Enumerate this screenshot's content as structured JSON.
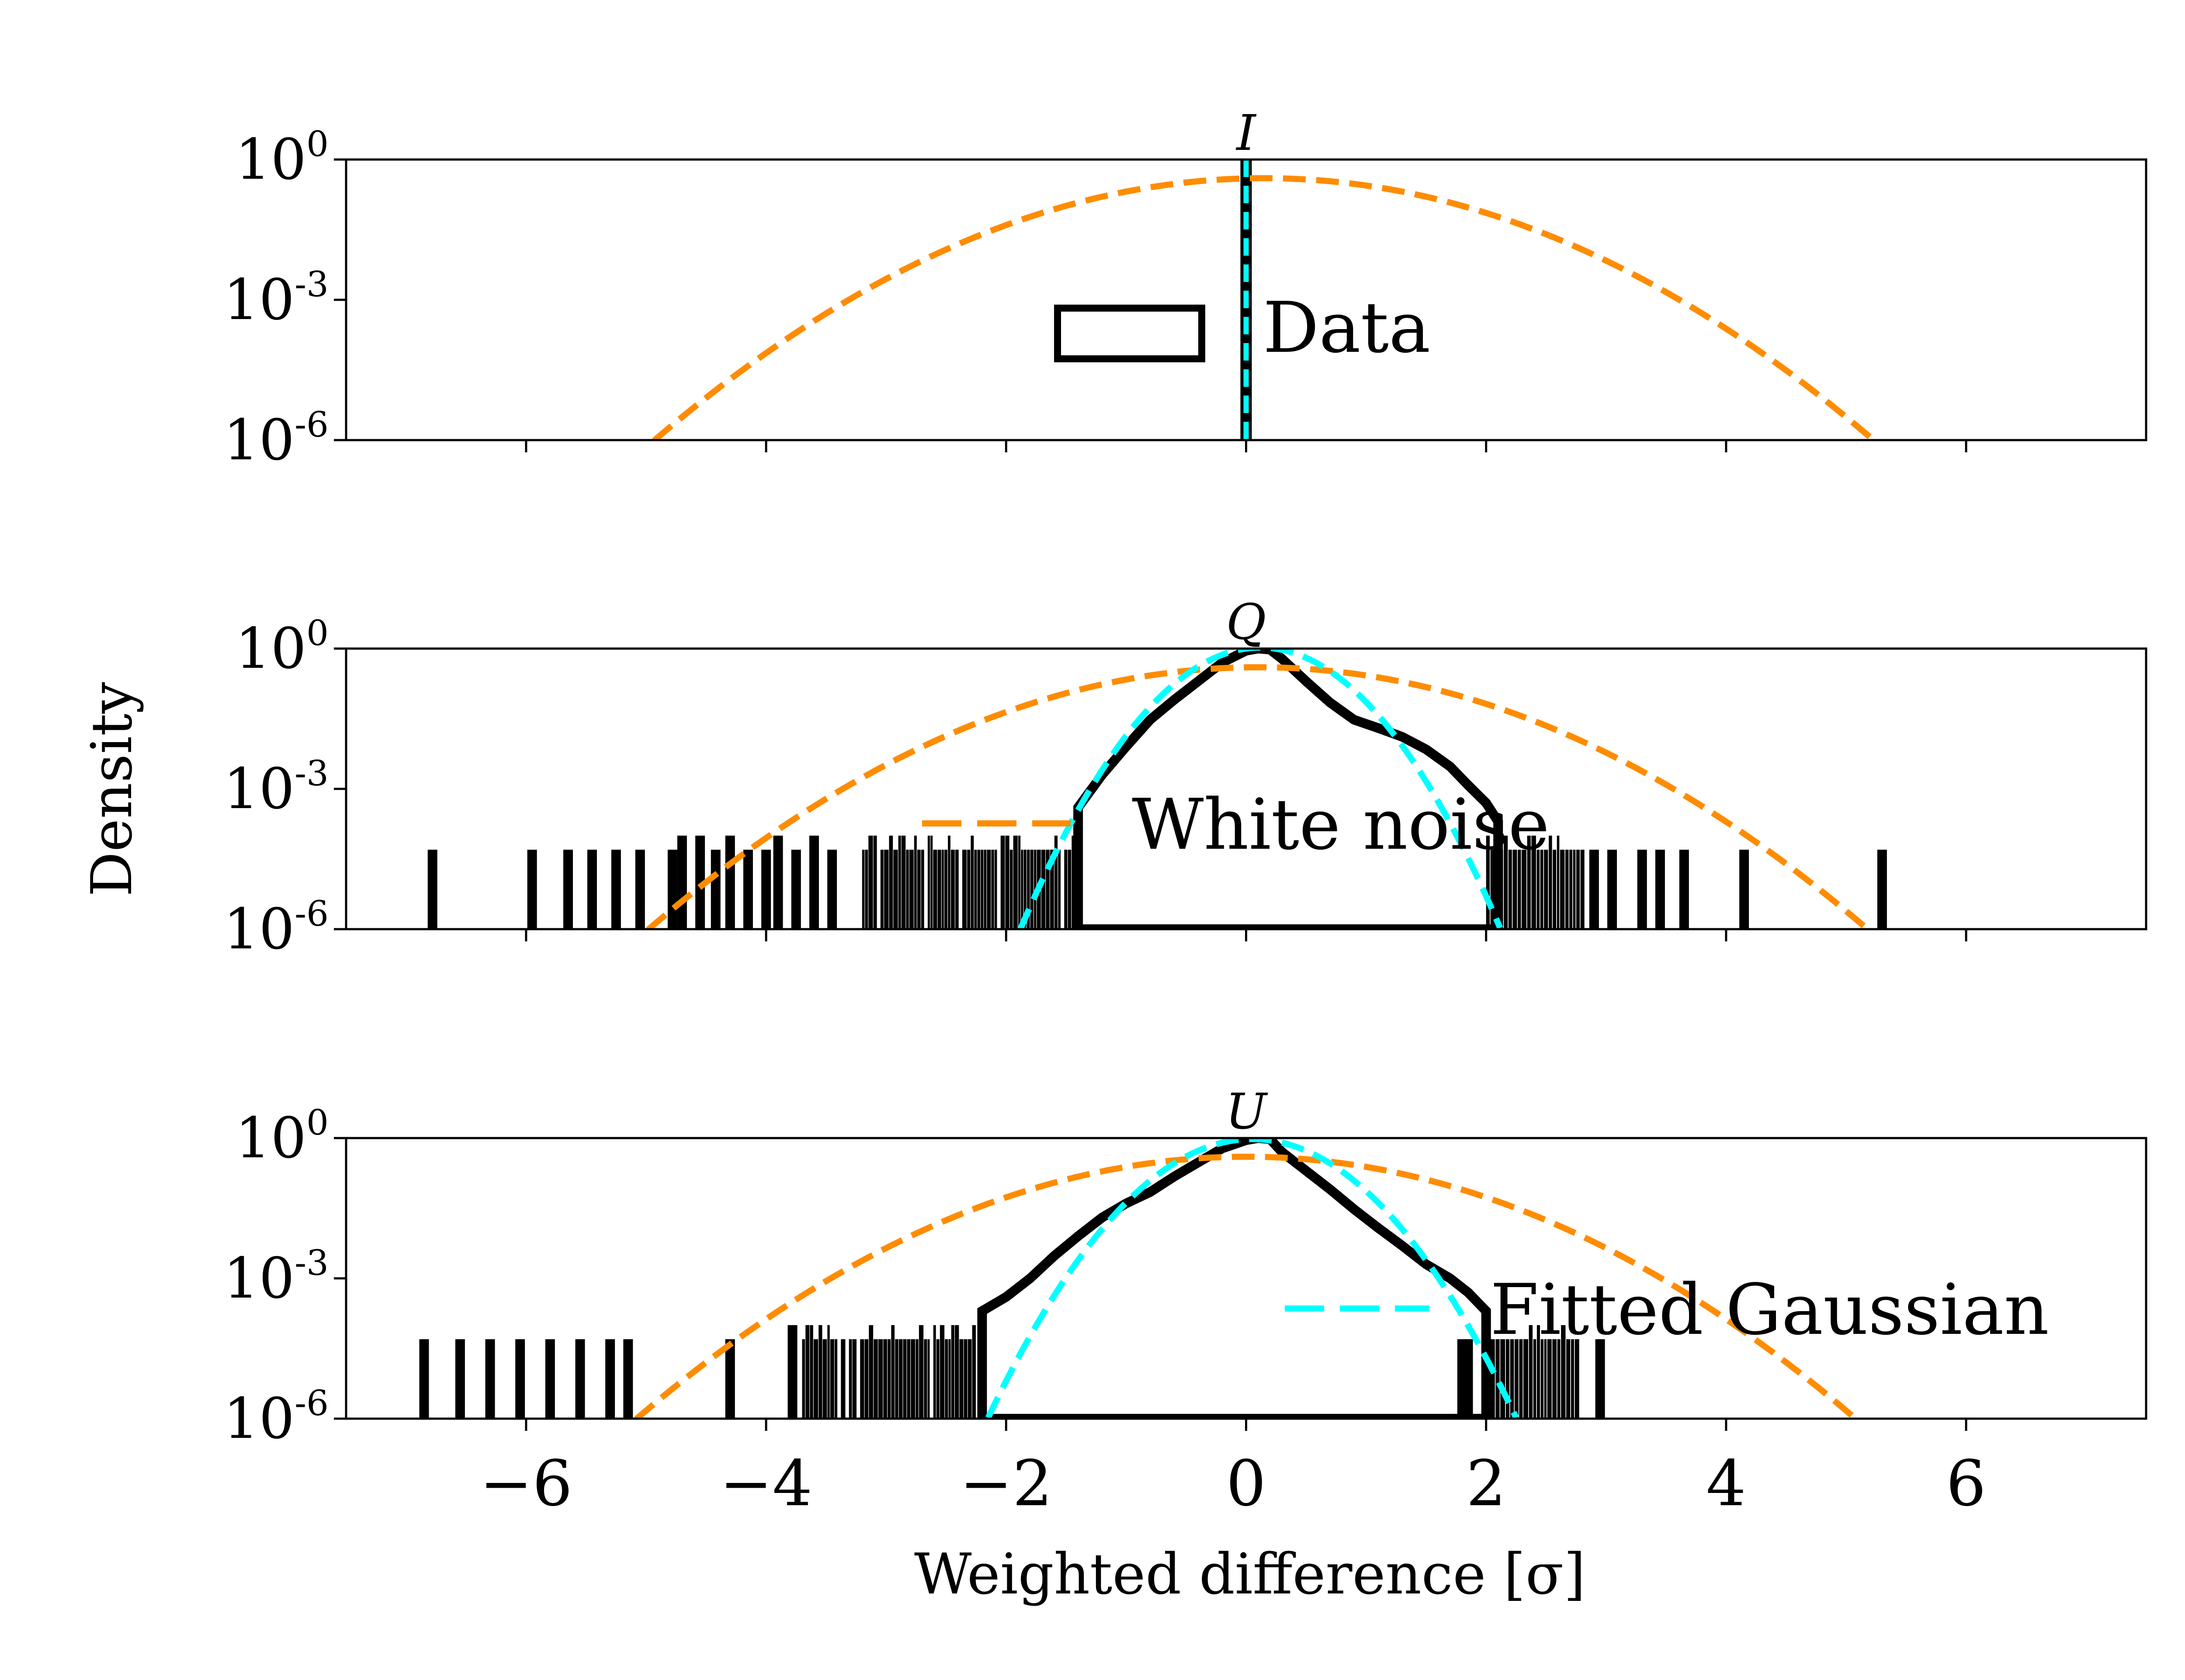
{
  "chart_data": {
    "type": "histogram",
    "xlabel": "Weighted difference [σ]",
    "ylabel": "Density",
    "xlim": [
      -7.5,
      7.5
    ],
    "x_ticks": [
      -6,
      -4,
      -2,
      0,
      2,
      4,
      6
    ],
    "x_tick_labels": [
      "−6",
      "−4",
      "−2",
      "0",
      "2",
      "4",
      "6"
    ],
    "ylim": [
      1e-06,
      1
    ],
    "y_scale": "log",
    "y_tick_labels": [
      {
        "base": "10",
        "exp": "0",
        "value": 1
      },
      {
        "base": "10",
        "exp": "-3",
        "value": 0.001
      },
      {
        "base": "10",
        "exp": "-6",
        "value": 1e-06
      }
    ],
    "colors": {
      "data": "#000000",
      "white_noise": "#ff8c00",
      "fitted_gaussian": "#00ffff"
    },
    "legend": [
      {
        "label": "Data",
        "style": "step-outline",
        "panel": "I",
        "placement": "center"
      },
      {
        "label": "White noise",
        "style": "dashed",
        "panel": "Q",
        "placement": "center"
      },
      {
        "label": "Fitted Gaussian",
        "style": "dashed",
        "panel": "U",
        "placement": "lower-right"
      }
    ],
    "panels": [
      {
        "title": "I",
        "white_noise": {
          "mu": 0.15,
          "sigma": 1.0
        },
        "fitted_gaussian": {
          "mu": 0.0,
          "sigma": 0.01
        },
        "hist": {
          "core_min_y": 1e-06,
          "left_core": [
            [
              0.0,
              1.0
            ]
          ],
          "right_core": [],
          "sparse_bars": []
        }
      },
      {
        "title": "Q",
        "white_noise": {
          "mu": 0.1,
          "sigma": 1.0
        },
        "fitted_gaussian": {
          "mu": 0.12,
          "sigma": 0.38
        },
        "hist": {
          "core_min_y": 1e-06,
          "left_core": [
            [
              -1.4,
              0.0004
            ],
            [
              -1.2,
              0.002
            ],
            [
              -1.0,
              0.008
            ],
            [
              -0.8,
              0.03
            ],
            [
              -0.6,
              0.08
            ],
            [
              -0.4,
              0.2
            ],
            [
              -0.2,
              0.5
            ],
            [
              0.0,
              0.9
            ],
            [
              0.1,
              1.0
            ],
            [
              0.2,
              0.95
            ]
          ],
          "right_core": [
            [
              0.3,
              0.6
            ],
            [
              0.5,
              0.2
            ],
            [
              0.7,
              0.07
            ],
            [
              0.9,
              0.03
            ],
            [
              1.1,
              0.02
            ],
            [
              1.3,
              0.013
            ],
            [
              1.5,
              0.007
            ],
            [
              1.7,
              0.003
            ],
            [
              1.85,
              0.0012
            ],
            [
              2.0,
              0.0005
            ],
            [
              2.1,
              0.0002
            ]
          ],
          "left_sparse_range": [
            -3.2,
            -1.4
          ],
          "right_sparse_range": [
            2.0,
            2.8
          ],
          "sparse_bars": [
            [
              -6.78,
              5e-05
            ],
            [
              -5.95,
              5e-05
            ],
            [
              -5.65,
              5e-05
            ],
            [
              -5.45,
              5e-05
            ],
            [
              -5.25,
              5e-05
            ],
            [
              -5.05,
              5e-05
            ],
            [
              -4.78,
              5e-05
            ],
            [
              -4.7,
              0.0001
            ],
            [
              -4.55,
              0.0001
            ],
            [
              -4.42,
              5e-05
            ],
            [
              -4.3,
              0.0001
            ],
            [
              -4.15,
              5e-05
            ],
            [
              -4.0,
              5e-05
            ],
            [
              -3.9,
              0.0001
            ],
            [
              -3.75,
              5e-05
            ],
            [
              -3.6,
              0.0001
            ],
            [
              -3.45,
              5e-05
            ],
            [
              2.9,
              5e-05
            ],
            [
              3.05,
              5e-05
            ],
            [
              3.3,
              5e-05
            ],
            [
              3.45,
              5e-05
            ],
            [
              3.65,
              5e-05
            ],
            [
              4.15,
              5e-05
            ],
            [
              5.3,
              5e-05
            ]
          ]
        }
      },
      {
        "title": "U",
        "white_noise": {
          "mu": 0.0,
          "sigma": 1.0
        },
        "fitted_gaussian": {
          "mu": 0.05,
          "sigma": 0.42
        },
        "hist": {
          "core_min_y": 1e-06,
          "left_core": [
            [
              -2.2,
              0.0002
            ],
            [
              -2.0,
              0.0004
            ],
            [
              -1.8,
              0.001
            ],
            [
              -1.6,
              0.003
            ],
            [
              -1.4,
              0.008
            ],
            [
              -1.2,
              0.02
            ],
            [
              -1.0,
              0.04
            ],
            [
              -0.8,
              0.07
            ],
            [
              -0.6,
              0.15
            ],
            [
              -0.4,
              0.3
            ],
            [
              -0.2,
              0.6
            ],
            [
              0.0,
              0.9
            ],
            [
              0.1,
              1.0
            ],
            [
              0.2,
              0.95
            ]
          ],
          "right_core": [
            [
              0.3,
              0.5
            ],
            [
              0.5,
              0.2
            ],
            [
              0.7,
              0.08
            ],
            [
              0.9,
              0.03
            ],
            [
              1.1,
              0.012
            ],
            [
              1.3,
              0.005
            ],
            [
              1.5,
              0.002
            ],
            [
              1.7,
              0.001
            ],
            [
              1.85,
              0.0005
            ],
            [
              2.0,
              0.0002
            ]
          ],
          "left_sparse_range": [
            -3.7,
            -2.2
          ],
          "right_sparse_range": [
            2.0,
            2.75
          ],
          "sparse_bars": [
            [
              -6.85,
              5e-05
            ],
            [
              -6.55,
              5e-05
            ],
            [
              -6.3,
              5e-05
            ],
            [
              -6.05,
              5e-05
            ],
            [
              -5.8,
              5e-05
            ],
            [
              -5.55,
              5e-05
            ],
            [
              -5.3,
              5e-05
            ],
            [
              -5.15,
              5e-05
            ],
            [
              -4.3,
              5e-05
            ],
            [
              -3.78,
              0.0001
            ],
            [
              1.8,
              5e-05
            ],
            [
              1.85,
              5e-05
            ],
            [
              2.95,
              5e-05
            ]
          ]
        }
      }
    ]
  }
}
